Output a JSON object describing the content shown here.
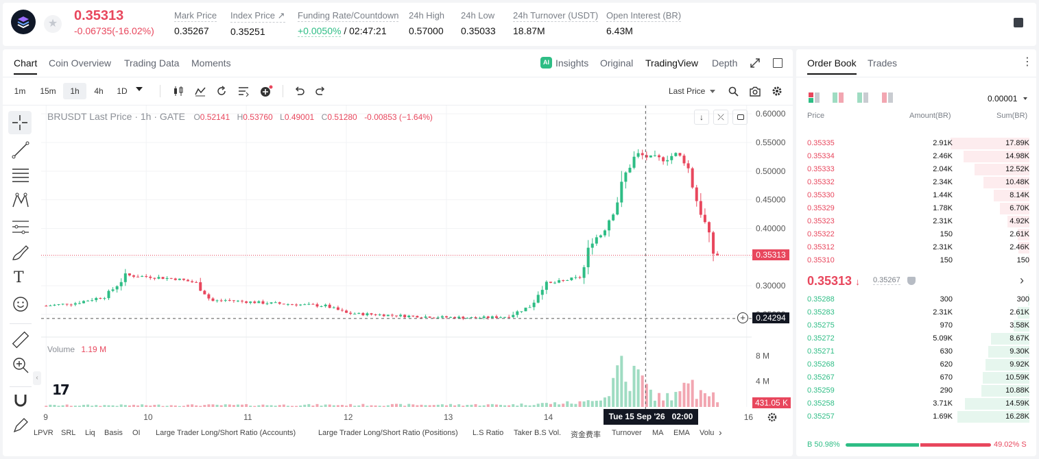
{
  "header": {
    "last_price": "0.35313",
    "change": "-0.06735(-16.02%)",
    "stats": [
      {
        "label": "Mark Price",
        "value": "0.35267"
      },
      {
        "label": "Index Price ↗",
        "value": "0.35251"
      },
      {
        "label": "Funding Rate/Countdown",
        "value_green": "+0.0050%",
        "value": " / 02:47:21"
      },
      {
        "label": "24h High",
        "value": "0.57000"
      },
      {
        "label": "24h Low",
        "value": "0.35033"
      },
      {
        "label": "24h Turnover (USDT)",
        "value": "18.87M"
      },
      {
        "label": "Open Interest (BR)",
        "value": "6.43M"
      }
    ]
  },
  "chart_tabs": [
    "Chart",
    "Coin Overview",
    "Trading Data",
    "Moments"
  ],
  "view_tabs": [
    "Insights",
    "Original",
    "TradingView",
    "Depth"
  ],
  "timeframes": [
    "1m",
    "15m",
    "1h",
    "4h",
    "1D"
  ],
  "price_mode": "Last Price",
  "legend": {
    "title": "BRUSDT Last Price · 1h · GATE",
    "o_label": "O",
    "o": "0.52141",
    "h_label": "H",
    "h": "0.53760",
    "l_label": "L",
    "l": "0.49001",
    "c_label": "C",
    "c": "0.51280",
    "chg": "-0.00853 (−1.64%)"
  },
  "volume": {
    "label": "Volume",
    "value": "1.19 M",
    "current_label": "431.05 K"
  },
  "crosshair": {
    "time_label": "Tue 15 Sep '26   02:00",
    "price_label": "0.24294"
  },
  "price_axis": [
    "0.60000",
    "0.55000",
    "0.50000",
    "0.45000",
    "0.40000",
    "0.35000",
    "0.30000",
    "0.25000"
  ],
  "volume_axis": [
    "8 M",
    "4 M"
  ],
  "time_axis": [
    "9",
    "10",
    "11",
    "12",
    "13",
    "14",
    "15",
    "16"
  ],
  "indicators": [
    "LPVR",
    "SRL",
    "Liq",
    "Basis",
    "OI",
    "Large Trader Long/Short Ratio (Accounts)",
    "Large Trader Long/Short Ratio (Positions)",
    "L.S Ratio",
    "Taker B.S Vol.",
    "资金费率",
    "Turnover",
    "MA",
    "EMA",
    "Volu"
  ],
  "colors": {
    "up": "#2ebd85",
    "down": "#e8475d",
    "up_light": "#9fdcc2",
    "down_light": "#f2a6b1"
  },
  "chart_data": {
    "type": "candlestick",
    "symbol": "BRUSDT",
    "interval": "1h",
    "ylim": [
      0.22,
      0.605
    ],
    "volume_ylim": [
      0,
      10.2
    ],
    "xlim": [
      8.95,
      16.05
    ],
    "x_ticks": [
      9,
      10,
      11,
      12,
      13,
      14,
      15,
      16
    ],
    "last_price": 0.35313,
    "crosshair_price": 0.24294,
    "crosshair_x": 14.99,
    "keypoints": [
      [
        9.0,
        0.265
      ],
      [
        9.3,
        0.27
      ],
      [
        9.6,
        0.282
      ],
      [
        9.8,
        0.318
      ],
      [
        10.0,
        0.316
      ],
      [
        10.3,
        0.312
      ],
      [
        10.5,
        0.305
      ],
      [
        10.65,
        0.273
      ],
      [
        10.8,
        0.275
      ],
      [
        11.0,
        0.272
      ],
      [
        11.4,
        0.268
      ],
      [
        11.8,
        0.265
      ],
      [
        12.0,
        0.252
      ],
      [
        12.5,
        0.248
      ],
      [
        12.8,
        0.246
      ],
      [
        13.0,
        0.245
      ],
      [
        13.3,
        0.244
      ],
      [
        13.45,
        0.245
      ],
      [
        13.6,
        0.246
      ],
      [
        13.85,
        0.265
      ],
      [
        13.95,
        0.3
      ],
      [
        14.2,
        0.31
      ],
      [
        14.35,
        0.315
      ],
      [
        14.45,
        0.38
      ],
      [
        14.55,
        0.39
      ],
      [
        14.7,
        0.445
      ],
      [
        14.8,
        0.5
      ],
      [
        14.9,
        0.53
      ],
      [
        15.0,
        0.525
      ],
      [
        15.15,
        0.52
      ],
      [
        15.3,
        0.53
      ],
      [
        15.4,
        0.515
      ],
      [
        15.5,
        0.45
      ],
      [
        15.6,
        0.4
      ],
      [
        15.65,
        0.36
      ],
      [
        15.72,
        0.353
      ]
    ],
    "volume_keypoints": [
      [
        9.0,
        0.25
      ],
      [
        13.7,
        0.35
      ],
      [
        13.9,
        0.5
      ],
      [
        14.4,
        0.7
      ],
      [
        14.45,
        1.5
      ],
      [
        14.6,
        1.5
      ],
      [
        14.7,
        5.5
      ],
      [
        14.75,
        8.0
      ],
      [
        14.8,
        3.0
      ],
      [
        14.85,
        4.5
      ],
      [
        14.9,
        5.5
      ],
      [
        15.0,
        3.0
      ],
      [
        15.1,
        1.5
      ],
      [
        15.3,
        1.8
      ],
      [
        15.4,
        3.0
      ],
      [
        15.45,
        7.0
      ],
      [
        15.5,
        2.5
      ],
      [
        15.6,
        3.5
      ],
      [
        15.72,
        0.8
      ]
    ]
  },
  "orderbook": {
    "tabs": [
      "Order Book",
      "Trades"
    ],
    "precision": "0.00001",
    "columns": [
      "Price",
      "Amount(BR)",
      "Sum(BR)"
    ],
    "asks": [
      {
        "price": "0.35335",
        "amount": "2.91K",
        "sum": "17.89K",
        "depth": 17.89
      },
      {
        "price": "0.35334",
        "amount": "2.46K",
        "sum": "14.98K",
        "depth": 14.98
      },
      {
        "price": "0.35333",
        "amount": "2.04K",
        "sum": "12.52K",
        "depth": 12.52
      },
      {
        "price": "0.35332",
        "amount": "2.34K",
        "sum": "10.48K",
        "depth": 10.48
      },
      {
        "price": "0.35330",
        "amount": "1.44K",
        "sum": "8.14K",
        "depth": 8.14
      },
      {
        "price": "0.35329",
        "amount": "1.78K",
        "sum": "6.70K",
        "depth": 6.7
      },
      {
        "price": "0.35323",
        "amount": "2.31K",
        "sum": "4.92K",
        "depth": 4.92
      },
      {
        "price": "0.35322",
        "amount": "150",
        "sum": "2.61K",
        "depth": 2.61
      },
      {
        "price": "0.35312",
        "amount": "2.31K",
        "sum": "2.46K",
        "depth": 2.46
      },
      {
        "price": "0.35310",
        "amount": "150",
        "sum": "150",
        "depth": 0.15
      }
    ],
    "mid_price": "0.35313",
    "mid_arrow": "↓",
    "mark_price": "0.35267",
    "bids": [
      {
        "price": "0.35288",
        "amount": "300",
        "sum": "300",
        "depth": 0.3
      },
      {
        "price": "0.35283",
        "amount": "2.31K",
        "sum": "2.61K",
        "depth": 2.61
      },
      {
        "price": "0.35275",
        "amount": "970",
        "sum": "3.58K",
        "depth": 3.58
      },
      {
        "price": "0.35272",
        "amount": "5.09K",
        "sum": "8.67K",
        "depth": 8.67
      },
      {
        "price": "0.35271",
        "amount": "630",
        "sum": "9.30K",
        "depth": 9.3
      },
      {
        "price": "0.35268",
        "amount": "620",
        "sum": "9.92K",
        "depth": 9.92
      },
      {
        "price": "0.35267",
        "amount": "670",
        "sum": "10.59K",
        "depth": 10.59
      },
      {
        "price": "0.35259",
        "amount": "290",
        "sum": "10.88K",
        "depth": 10.88
      },
      {
        "price": "0.35258",
        "amount": "3.71K",
        "sum": "14.59K",
        "depth": 14.59
      },
      {
        "price": "0.35257",
        "amount": "1.69K",
        "sum": "16.28K",
        "depth": 16.28
      }
    ],
    "depth_max": 17.89,
    "buy_ratio_label": "B 50.98%",
    "sell_ratio_label": "49.02% S",
    "buy_ratio": 0.5098
  }
}
